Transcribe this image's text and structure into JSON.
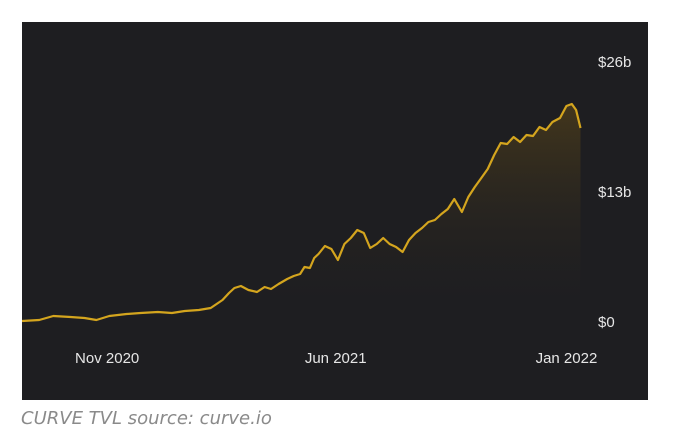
{
  "caption": "CURVE TVL source: curve.io",
  "colors": {
    "background": "#1e1e21",
    "line": "#d4a51e",
    "area_top": "#4a3b1b",
    "text": "#e6e6e6",
    "caption": "#8a8a8a"
  },
  "chart_data": {
    "type": "area",
    "title": "",
    "xlabel": "",
    "ylabel": "",
    "grid": false,
    "y_axis_position": "right",
    "ylim": [
      0,
      26
    ],
    "y_unit": "billion USD",
    "xlim": [
      "2020-08-14",
      "2022-01-21"
    ],
    "x_ticks": [
      {
        "date": "2020-11-01",
        "label": "Nov 2020"
      },
      {
        "date": "2021-06-01",
        "label": "Jun 2021"
      },
      {
        "date": "2022-01-01",
        "label": "Jan 2022"
      }
    ],
    "y_ticks": [
      {
        "value": 0,
        "label": "$0"
      },
      {
        "value": 13,
        "label": "$13b"
      },
      {
        "value": 26,
        "label": "$26b"
      }
    ],
    "series": [
      {
        "x": [
          "2020-08-14",
          "2020-08-30",
          "2020-09-12",
          "2020-09-28",
          "2020-10-11",
          "2020-10-22",
          "2020-11-03",
          "2020-11-19",
          "2020-12-02",
          "2020-12-18",
          "2020-12-31",
          "2021-01-12",
          "2021-01-25",
          "2021-02-05",
          "2021-02-16",
          "2021-02-22",
          "2021-02-27",
          "2021-03-05",
          "2021-03-12",
          "2021-03-20",
          "2021-03-27",
          "2021-04-02",
          "2021-04-09",
          "2021-04-17",
          "2021-04-23",
          "2021-04-29",
          "2021-05-03",
          "2021-05-08",
          "2021-05-12",
          "2021-05-16",
          "2021-05-22",
          "2021-05-28",
          "2021-06-03",
          "2021-06-09",
          "2021-06-15",
          "2021-06-21",
          "2021-06-27",
          "2021-07-03",
          "2021-07-09",
          "2021-07-15",
          "2021-07-21",
          "2021-07-27",
          "2021-08-02",
          "2021-08-08",
          "2021-08-14",
          "2021-08-20",
          "2021-08-26",
          "2021-09-01",
          "2021-09-07",
          "2021-09-13",
          "2021-09-19",
          "2021-09-26",
          "2021-10-02",
          "2021-10-08",
          "2021-10-14",
          "2021-10-20",
          "2021-10-26",
          "2021-11-01",
          "2021-11-07",
          "2021-11-13",
          "2021-11-19",
          "2021-11-25",
          "2021-12-01",
          "2021-12-07",
          "2021-12-13",
          "2021-12-19",
          "2021-12-26",
          "2022-01-01",
          "2022-01-06",
          "2022-01-10",
          "2022-01-14"
        ],
        "values": [
          0.1,
          0.2,
          0.6,
          0.5,
          0.4,
          0.2,
          0.6,
          0.8,
          0.9,
          1.0,
          0.9,
          1.1,
          1.2,
          1.4,
          2.2,
          2.9,
          3.4,
          3.6,
          3.2,
          3.0,
          3.5,
          3.3,
          3.8,
          4.3,
          4.6,
          4.8,
          5.5,
          5.4,
          6.4,
          6.8,
          7.6,
          7.3,
          6.2,
          7.8,
          8.4,
          9.2,
          8.9,
          7.4,
          7.8,
          8.4,
          7.8,
          7.5,
          7.0,
          8.2,
          8.9,
          9.4,
          10.0,
          10.2,
          10.8,
          11.3,
          12.3,
          11.0,
          12.5,
          13.5,
          14.4,
          15.3,
          16.7,
          17.9,
          17.8,
          18.5,
          18.0,
          18.7,
          18.6,
          19.5,
          19.2,
          20.0,
          20.4,
          21.6,
          21.8,
          21.2,
          19.4
        ]
      }
    ]
  }
}
